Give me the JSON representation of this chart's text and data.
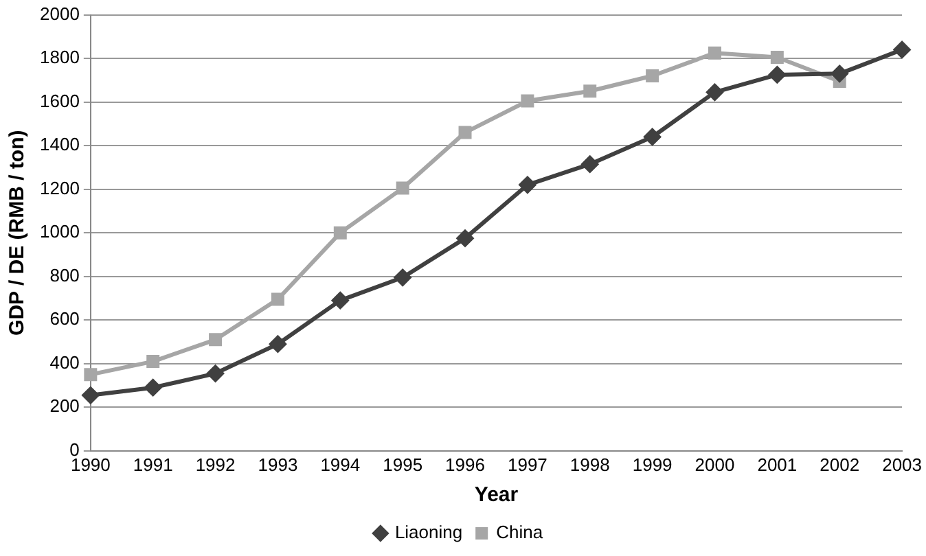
{
  "chart_data": {
    "type": "line",
    "xlabel": "Year",
    "ylabel": "GDP / DE (RMB / ton)",
    "categories": [
      "1990",
      "1991",
      "1992",
      "1993",
      "1994",
      "1995",
      "1996",
      "1997",
      "1998",
      "1999",
      "2000",
      "2001",
      "2002",
      "2003"
    ],
    "series": [
      {
        "name": "Liaoning",
        "color": "#404040",
        "marker": "diamond",
        "values": [
          255,
          290,
          355,
          490,
          690,
          795,
          975,
          1220,
          1315,
          1440,
          1645,
          1725,
          1730,
          1840
        ]
      },
      {
        "name": "China",
        "color": "#a6a6a6",
        "marker": "square",
        "values": [
          350,
          410,
          510,
          695,
          1000,
          1205,
          1460,
          1605,
          1650,
          1720,
          1825,
          1805,
          1695,
          null
        ]
      }
    ],
    "ylim": [
      0,
      2000
    ],
    "yticks": [
      0,
      200,
      400,
      600,
      800,
      1000,
      1200,
      1400,
      1600,
      1800,
      2000
    ],
    "grid": "y",
    "legend": "bottom"
  }
}
